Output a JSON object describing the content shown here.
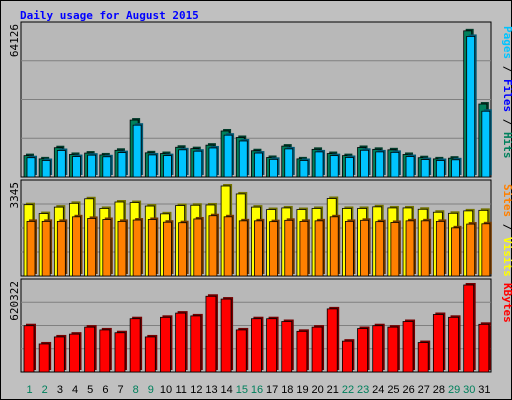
{
  "chart_data": [
    {
      "type": "bar",
      "title": "Daily usage for August 2015",
      "categories": [
        "1",
        "2",
        "3",
        "4",
        "5",
        "6",
        "7",
        "8",
        "9",
        "10",
        "11",
        "12",
        "13",
        "14",
        "15",
        "16",
        "17",
        "18",
        "19",
        "20",
        "21",
        "22",
        "23",
        "24",
        "25",
        "26",
        "27",
        "28",
        "29",
        "30",
        "31"
      ],
      "weekend_days": [
        "1",
        "2",
        "8",
        "9",
        "15",
        "16",
        "22",
        "23",
        "29",
        "30"
      ],
      "y_tick_label": "64126",
      "ylim": [
        0,
        64126
      ],
      "series": [
        {
          "name": "Hits",
          "color": "#00805c",
          "values": [
            9200,
            7800,
            12600,
            9700,
            10300,
            9500,
            11500,
            24500,
            10400,
            10100,
            12800,
            12200,
            13700,
            19800,
            17000,
            11300,
            8400,
            13300,
            7800,
            11900,
            10100,
            9200,
            12700,
            11900,
            11700,
            9700,
            8300,
            7800,
            8100,
            62900,
            31400
          ]
        },
        {
          "name": "Files",
          "color": "#0000ff",
          "values": [
            8300,
            7100,
            11400,
            8800,
            9400,
            8700,
            10500,
            22300,
            9500,
            9200,
            11700,
            11100,
            12500,
            18000,
            15500,
            10300,
            7600,
            12100,
            7100,
            10800,
            9200,
            8400,
            11500,
            10800,
            10600,
            8800,
            7500,
            7100,
            7400,
            60500,
            28300
          ]
        },
        {
          "name": "Pages",
          "color": "#00c4ff",
          "values": [
            8300,
            7100,
            11400,
            8800,
            9400,
            8700,
            10500,
            22300,
            9500,
            9200,
            11700,
            11100,
            12500,
            18000,
            15500,
            10300,
            7600,
            12100,
            7100,
            10800,
            9200,
            8400,
            11500,
            10800,
            10600,
            8800,
            7500,
            7100,
            7400,
            60500,
            28300
          ]
        }
      ]
    },
    {
      "type": "bar",
      "categories": [
        "1",
        "2",
        "3",
        "4",
        "5",
        "6",
        "7",
        "8",
        "9",
        "10",
        "11",
        "12",
        "13",
        "14",
        "15",
        "16",
        "17",
        "18",
        "19",
        "20",
        "21",
        "22",
        "23",
        "24",
        "25",
        "26",
        "27",
        "28",
        "29",
        "30",
        "31"
      ],
      "y_tick_label": "3345",
      "ylim": [
        0,
        3345
      ],
      "series": [
        {
          "name": "Visits",
          "color": "#ffff00",
          "values": [
            2650,
            2320,
            2560,
            2700,
            2870,
            2510,
            2750,
            2730,
            2600,
            2310,
            2620,
            2630,
            2640,
            3345,
            3050,
            2560,
            2470,
            2530,
            2470,
            2510,
            2880,
            2510,
            2510,
            2570,
            2530,
            2530,
            2480,
            2370,
            2330,
            2420,
            2440
          ]
        },
        {
          "name": "Sites",
          "color": "#ff8000",
          "values": [
            2030,
            2030,
            2030,
            2200,
            2140,
            2100,
            2030,
            2080,
            2100,
            2000,
            1980,
            2120,
            2240,
            2200,
            2050,
            2050,
            2020,
            2070,
            2030,
            2050,
            2200,
            2030,
            2070,
            2020,
            1990,
            2050,
            2050,
            2030,
            1790,
            1930,
            1940
          ]
        }
      ]
    },
    {
      "type": "bar",
      "categories": [
        "1",
        "2",
        "3",
        "4",
        "5",
        "6",
        "7",
        "8",
        "9",
        "10",
        "11",
        "12",
        "13",
        "14",
        "15",
        "16",
        "17",
        "18",
        "19",
        "20",
        "21",
        "22",
        "23",
        "24",
        "25",
        "26",
        "27",
        "28",
        "29",
        "30",
        "31"
      ],
      "y_tick_label": "620322",
      "ylim": [
        0,
        620322
      ],
      "series": [
        {
          "name": "KBytes",
          "color": "#ff0000",
          "values": [
            330000,
            200000,
            250000,
            270000,
            320000,
            300000,
            280000,
            380000,
            250000,
            390000,
            420000,
            400000,
            540000,
            520000,
            300000,
            380000,
            380000,
            360000,
            290000,
            320000,
            450000,
            220000,
            310000,
            330000,
            320000,
            360000,
            210000,
            410000,
            390000,
            620322,
            340000
          ]
        }
      ]
    }
  ]
}
